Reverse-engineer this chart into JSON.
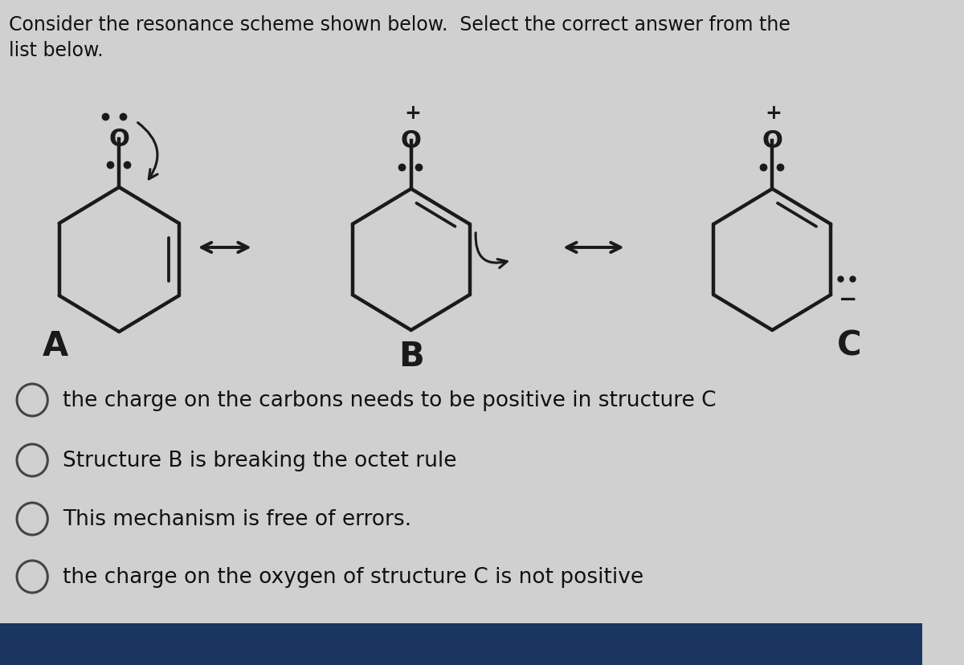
{
  "bg_color": "#d0d0d0",
  "title_line1": "Consider the resonance scheme shown below.  Select the correct answer from the",
  "title_line2": "list below.",
  "title_fontsize": 17,
  "title_color": "#111111",
  "label_A": "A",
  "label_B": "B",
  "label_C": "C",
  "label_fontsize": 30,
  "options": [
    "the charge on the carbons needs to be positive in structure C",
    "Structure B is breaking the octet rule",
    "This mechanism is free of errors.",
    "the charge on the oxygen of structure C is not positive"
  ],
  "option_fontsize": 19,
  "option_color": "#111111",
  "circle_color": "#444444",
  "struct_color": "#1a1a1a",
  "bottom_bar_color": "#1a3560",
  "arrow_color": "#1a1a1a"
}
